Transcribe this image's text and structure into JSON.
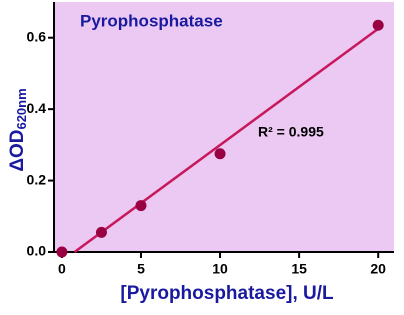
{
  "chart_data": {
    "type": "scatter",
    "title": "Pyrophosphatase",
    "x_label": "[Pyrophosphatase], U/L",
    "y_label": "ΔOD",
    "y_label_sub": "620nm",
    "annotation": "R² = 0.995",
    "x": [
      0,
      2.5,
      5,
      10,
      20
    ],
    "series": [
      {
        "color": "#990044",
        "values": [
          0,
          0.055,
          0.13,
          0.275,
          0.635
        ]
      }
    ],
    "fit": {
      "color": "#c8185c",
      "x": [
        0.8,
        20
      ],
      "y": [
        0,
        0.625
      ]
    },
    "xlim": [
      -0.5,
      21
    ],
    "ylim": [
      0,
      0.7
    ],
    "xticks": [
      0,
      5,
      10,
      15,
      20
    ],
    "yticks": [
      {
        "value": 0,
        "label": "0.0"
      },
      0.2,
      0.4,
      0.6
    ],
    "background": "#ebc9f2"
  }
}
